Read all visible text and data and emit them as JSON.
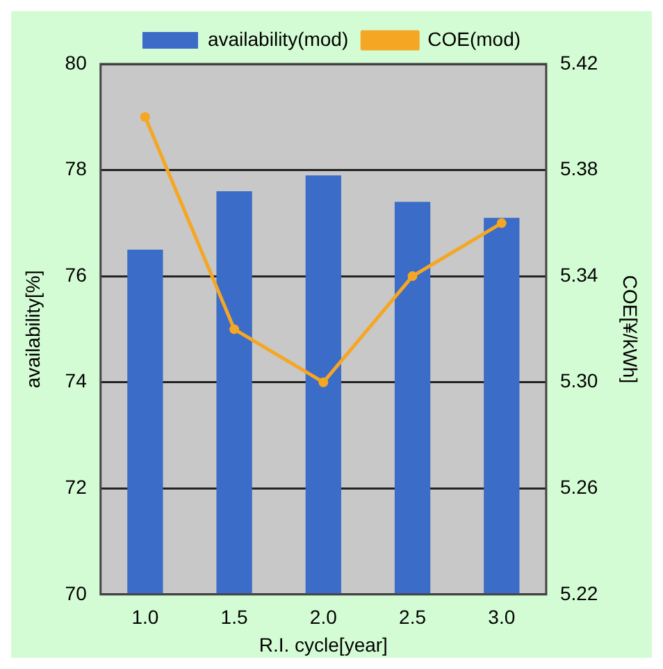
{
  "chart_data": {
    "type": "bar",
    "xlabel": "R.I. cycle[year]",
    "ylabel": "availability[%]",
    "y2label": "COE[¥/kWh]",
    "categories": [
      "1.0",
      "1.5",
      "2.0",
      "2.5",
      "3.0"
    ],
    "series": [
      {
        "name": "availability(mod)",
        "color": "#3b6cc8",
        "values": [
          76.5,
          77.6,
          77.9,
          77.4,
          77.1
        ]
      },
      {
        "name": "COE(mod)",
        "color": "#f5a623",
        "type": "line",
        "axis": "y2",
        "marker": "circle",
        "values": [
          5.4,
          5.32,
          5.3,
          5.34,
          5.36
        ]
      }
    ],
    "ylim": [
      70,
      80
    ],
    "yticks": [
      70,
      72,
      74,
      76,
      78,
      80
    ],
    "y2lim": [
      5.22,
      5.42
    ],
    "y2ticks": [
      {
        "value": 5.22,
        "label": "5.22"
      },
      {
        "value": 5.26,
        "label": "5.26"
      },
      {
        "value": 5.3,
        "label": "5.30"
      },
      {
        "value": 5.34,
        "label": "5.34"
      },
      {
        "value": 5.38,
        "label": "5.38"
      },
      {
        "value": 5.42,
        "label": "5.42"
      }
    ],
    "grid": "y",
    "legend": "top"
  }
}
